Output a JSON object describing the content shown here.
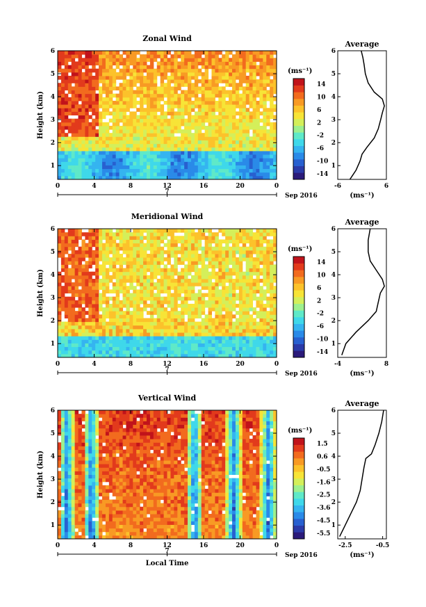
{
  "chart_data": [
    {
      "type": "heatmap",
      "title": "Zonal Wind",
      "ylabel": "Height (km)",
      "xticks": [
        "0",
        "4",
        "8",
        "12",
        "16",
        "20",
        "0"
      ],
      "yticks": [
        "1",
        "2",
        "3",
        "4",
        "5",
        "6"
      ],
      "ylim": [
        0.4,
        6
      ],
      "xlim": [
        0,
        24
      ],
      "date_tick": "7",
      "date_label": "Sep 2016",
      "colorbar": {
        "unit": "(ms⁻¹)",
        "ticks": [
          "14",
          "10",
          "6",
          "2",
          "-2",
          "-6",
          "-10",
          "-14"
        ],
        "range": [
          -16,
          16
        ]
      },
      "profile": {
        "title": "Average",
        "xticks": [
          "-6",
          "6"
        ],
        "xlabel": "(ms⁻¹)",
        "yticks": [
          "1",
          "2",
          "3",
          "4",
          "5",
          "6"
        ],
        "xlim": [
          -6,
          6
        ],
        "points": [
          [
            -3.0,
            0.4
          ],
          [
            -1.5,
            0.8
          ],
          [
            -0.5,
            1.2
          ],
          [
            0.0,
            1.5
          ],
          [
            1.2,
            1.8
          ],
          [
            3.0,
            2.2
          ],
          [
            4.0,
            2.6
          ],
          [
            4.6,
            3.0
          ],
          [
            5.0,
            3.3
          ],
          [
            5.5,
            3.6
          ],
          [
            5.0,
            3.9
          ],
          [
            3.0,
            4.2
          ],
          [
            1.5,
            4.6
          ],
          [
            0.8,
            5.0
          ],
          [
            0.5,
            5.4
          ],
          [
            0.2,
            5.7
          ],
          [
            -0.2,
            6.0
          ]
        ]
      }
    },
    {
      "type": "heatmap",
      "title": "Meridional Wind",
      "ylabel": "Height (km)",
      "xticks": [
        "0",
        "4",
        "8",
        "12",
        "16",
        "20",
        "0"
      ],
      "yticks": [
        "1",
        "2",
        "3",
        "4",
        "5",
        "6"
      ],
      "ylim": [
        0.4,
        6
      ],
      "xlim": [
        0,
        24
      ],
      "date_tick": "7",
      "date_label": "Sep 2016",
      "colorbar": {
        "unit": "(ms⁻¹)",
        "ticks": [
          "14",
          "10",
          "6",
          "2",
          "-2",
          "-6",
          "-10",
          "-14"
        ],
        "range": [
          -16,
          16
        ]
      },
      "profile": {
        "title": "Average",
        "xticks": [
          "-4",
          "8"
        ],
        "xlabel": "(ms⁻¹)",
        "yticks": [
          "1",
          "2",
          "3",
          "4",
          "5",
          "6"
        ],
        "xlim": [
          -4,
          8
        ],
        "points": [
          [
            -3.0,
            0.5
          ],
          [
            -2.0,
            1.0
          ],
          [
            0.5,
            1.5
          ],
          [
            3.5,
            2.0
          ],
          [
            5.5,
            2.4
          ],
          [
            6.0,
            2.8
          ],
          [
            6.5,
            3.2
          ],
          [
            7.5,
            3.5
          ],
          [
            7.0,
            3.8
          ],
          [
            5.5,
            4.2
          ],
          [
            4.0,
            4.6
          ],
          [
            3.5,
            5.0
          ],
          [
            3.5,
            5.5
          ],
          [
            4.0,
            6.0
          ]
        ]
      }
    },
    {
      "type": "heatmap",
      "title": "Vertical Wind",
      "ylabel": "Height (km)",
      "xlabel": "Local Time",
      "xticks": [
        "0",
        "4",
        "8",
        "12",
        "16",
        "20",
        "0"
      ],
      "yticks": [
        "1",
        "2",
        "3",
        "4",
        "5",
        "6"
      ],
      "ylim": [
        0.4,
        6
      ],
      "xlim": [
        0,
        24
      ],
      "date_tick": "7",
      "date_label": "Sep 2016",
      "colorbar": {
        "unit": "(ms⁻¹)",
        "ticks": [
          "1.5",
          "0.6",
          "-0.5",
          "-1.6",
          "-2.5",
          "-3.6",
          "-4.5",
          "-5.5"
        ],
        "range": [
          -6.0,
          2.0
        ]
      },
      "profile": {
        "title": "Average",
        "xticks": [
          "-2.5",
          "-0.5"
        ],
        "xlabel": "(ms⁻¹)",
        "yticks": [
          "1",
          "2",
          "3",
          "4",
          "5",
          "6"
        ],
        "xlim": [
          -2.9,
          -0.3
        ],
        "points": [
          [
            -2.8,
            0.5
          ],
          [
            -2.5,
            1.0
          ],
          [
            -2.2,
            1.5
          ],
          [
            -1.9,
            2.0
          ],
          [
            -1.7,
            2.5
          ],
          [
            -1.6,
            3.0
          ],
          [
            -1.5,
            3.5
          ],
          [
            -1.4,
            3.9
          ],
          [
            -1.1,
            4.1
          ],
          [
            -0.9,
            4.5
          ],
          [
            -0.7,
            5.0
          ],
          [
            -0.55,
            5.5
          ],
          [
            -0.45,
            6.0
          ]
        ]
      }
    }
  ]
}
